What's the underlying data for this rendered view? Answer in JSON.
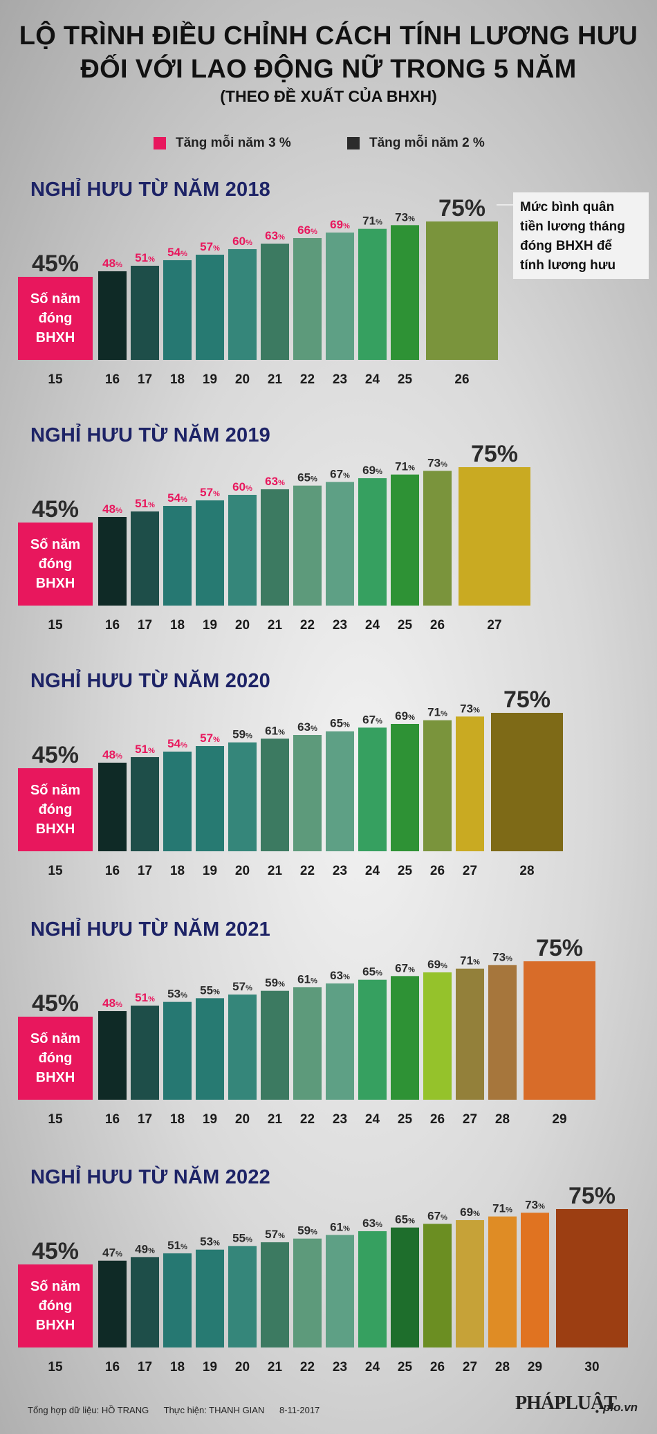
{
  "header": {
    "title_line1": "LỘ TRÌNH ĐIỀU CHỈNH CÁCH TÍNH LƯƠNG HƯU",
    "title_line2": "ĐỐI VỚI LAO ĐỘNG NỮ TRONG 5 NĂM",
    "subtitle": "(THEO ĐỀ XUẤT CỦA BHXH)"
  },
  "legend": [
    {
      "label": "Tăng mỗi năm 3 %",
      "color": "#e8175d"
    },
    {
      "label": "Tăng mỗi năm 2 %",
      "color": "#2b2b2b"
    }
  ],
  "note": {
    "lines": [
      "Mức bình quân",
      "tiền lương tháng",
      "đóng BHXH để",
      "tính lương hưu"
    ]
  },
  "base_bar": {
    "label_lines": [
      "Số năm",
      "đóng",
      "BHXH"
    ],
    "color": "#e8175d"
  },
  "chart_data": [
    {
      "type": "bar",
      "title": "NGHỈ HƯU TỪ NĂM 2018",
      "xlabel": "Số năm đóng BHXH",
      "ylabel": "Mức bình quân tiền lương tháng đóng BHXH để tính lương hưu (%)",
      "categories": [
        "15",
        "16",
        "17",
        "18",
        "19",
        "20",
        "21",
        "22",
        "23",
        "24",
        "25",
        "26"
      ],
      "values": [
        45,
        48,
        51,
        54,
        57,
        60,
        63,
        66,
        69,
        71,
        73,
        75
      ],
      "increase": [
        null,
        "3",
        "3",
        "3",
        "3",
        "3",
        "3",
        "3",
        "3",
        "2",
        "2",
        "2"
      ],
      "colors": [
        "#e8175d",
        "#0f2a26",
        "#1e4e49",
        "#267872",
        "#277a72",
        "#35867a",
        "#3c7a61",
        "#5d9a7b",
        "#5ea085",
        "#36a060",
        "#2e9235",
        "#7a943c"
      ],
      "ylim": [
        0,
        75
      ]
    },
    {
      "type": "bar",
      "title": "NGHỈ HƯU TỪ NĂM 2019",
      "xlabel": "Số năm đóng BHXH",
      "ylabel": "Mức bình quân tiền lương tháng đóng BHXH để tính lương hưu (%)",
      "categories": [
        "15",
        "16",
        "17",
        "18",
        "19",
        "20",
        "21",
        "22",
        "23",
        "24",
        "25",
        "26",
        "27"
      ],
      "values": [
        45,
        48,
        51,
        54,
        57,
        60,
        63,
        65,
        67,
        69,
        71,
        73,
        75
      ],
      "increase": [
        null,
        "3",
        "3",
        "3",
        "3",
        "3",
        "3",
        "2",
        "2",
        "2",
        "2",
        "2",
        "2"
      ],
      "colors": [
        "#e8175d",
        "#0f2a26",
        "#1e4e49",
        "#267872",
        "#277a72",
        "#35867a",
        "#3c7a61",
        "#5d9a7b",
        "#5ea085",
        "#36a060",
        "#2e9235",
        "#7a943c",
        "#c9aa22"
      ],
      "ylim": [
        0,
        75
      ]
    },
    {
      "type": "bar",
      "title": "NGHỈ HƯU TỪ NĂM 2020",
      "xlabel": "Số năm đóng BHXH",
      "ylabel": "Mức bình quân tiền lương tháng đóng BHXH để tính lương hưu (%)",
      "categories": [
        "15",
        "16",
        "17",
        "18",
        "19",
        "20",
        "21",
        "22",
        "23",
        "24",
        "25",
        "26",
        "27",
        "28"
      ],
      "values": [
        45,
        48,
        51,
        54,
        57,
        59,
        61,
        63,
        65,
        67,
        69,
        71,
        73,
        75
      ],
      "increase": [
        null,
        "3",
        "3",
        "3",
        "3",
        "2",
        "2",
        "2",
        "2",
        "2",
        "2",
        "2",
        "2",
        "2"
      ],
      "colors": [
        "#e8175d",
        "#0f2a26",
        "#1e4e49",
        "#267872",
        "#277a72",
        "#35867a",
        "#3c7a61",
        "#5d9a7b",
        "#5ea085",
        "#36a060",
        "#2e9235",
        "#7a943c",
        "#c9aa22",
        "#7e6a17"
      ],
      "ylim": [
        0,
        75
      ]
    },
    {
      "type": "bar",
      "title": "NGHỈ HƯU TỪ NĂM 2021",
      "xlabel": "Số năm đóng BHXH",
      "ylabel": "Mức bình quân tiền lương tháng đóng BHXH để tính lương hưu (%)",
      "categories": [
        "15",
        "16",
        "17",
        "18",
        "19",
        "20",
        "21",
        "22",
        "23",
        "24",
        "25",
        "26",
        "27",
        "28",
        "29"
      ],
      "values": [
        45,
        48,
        51,
        53,
        55,
        57,
        59,
        61,
        63,
        65,
        67,
        69,
        71,
        73,
        75
      ],
      "increase": [
        null,
        "3",
        "3",
        "2",
        "2",
        "2",
        "2",
        "2",
        "2",
        "2",
        "2",
        "2",
        "2",
        "2",
        "2"
      ],
      "colors": [
        "#e8175d",
        "#0f2a26",
        "#1e4e49",
        "#267872",
        "#277a72",
        "#35867a",
        "#3c7a61",
        "#5d9a7b",
        "#5ea085",
        "#36a060",
        "#2e9235",
        "#95c22b",
        "#93803a",
        "#a6763c",
        "#d86c29"
      ],
      "ylim": [
        0,
        75
      ]
    },
    {
      "type": "bar",
      "title": "NGHỈ HƯU TỪ NĂM 2022",
      "xlabel": "Số năm đóng BHXH",
      "ylabel": "Mức bình quân tiền lương tháng đóng BHXH để tính lương hưu (%)",
      "categories": [
        "15",
        "16",
        "17",
        "18",
        "19",
        "20",
        "21",
        "22",
        "23",
        "24",
        "25",
        "26",
        "27",
        "28",
        "29",
        "30"
      ],
      "values": [
        45,
        47,
        49,
        51,
        53,
        55,
        57,
        59,
        61,
        63,
        65,
        67,
        69,
        71,
        73,
        75
      ],
      "increase": [
        null,
        "2",
        "2",
        "2",
        "2",
        "2",
        "2",
        "2",
        "2",
        "2",
        "2",
        "2",
        "2",
        "2",
        "2",
        "2"
      ],
      "colors": [
        "#e8175d",
        "#0f2a26",
        "#1e4e49",
        "#267872",
        "#277a72",
        "#35867a",
        "#3c7a61",
        "#5d9a7b",
        "#5ea085",
        "#36a060",
        "#1e6e2c",
        "#6b8e22",
        "#c6a238",
        "#df8c25",
        "#e07321",
        "#9c3e12"
      ],
      "ylim": [
        0,
        75
      ]
    }
  ],
  "footer": {
    "source": "Tổng hợp dữ liệu: HỒ TRANG",
    "author": "Thực hiện: THANH GIAN",
    "date": "8-11-2017",
    "logo": "PHÁPLUẬT",
    "site": "plo.vn"
  }
}
